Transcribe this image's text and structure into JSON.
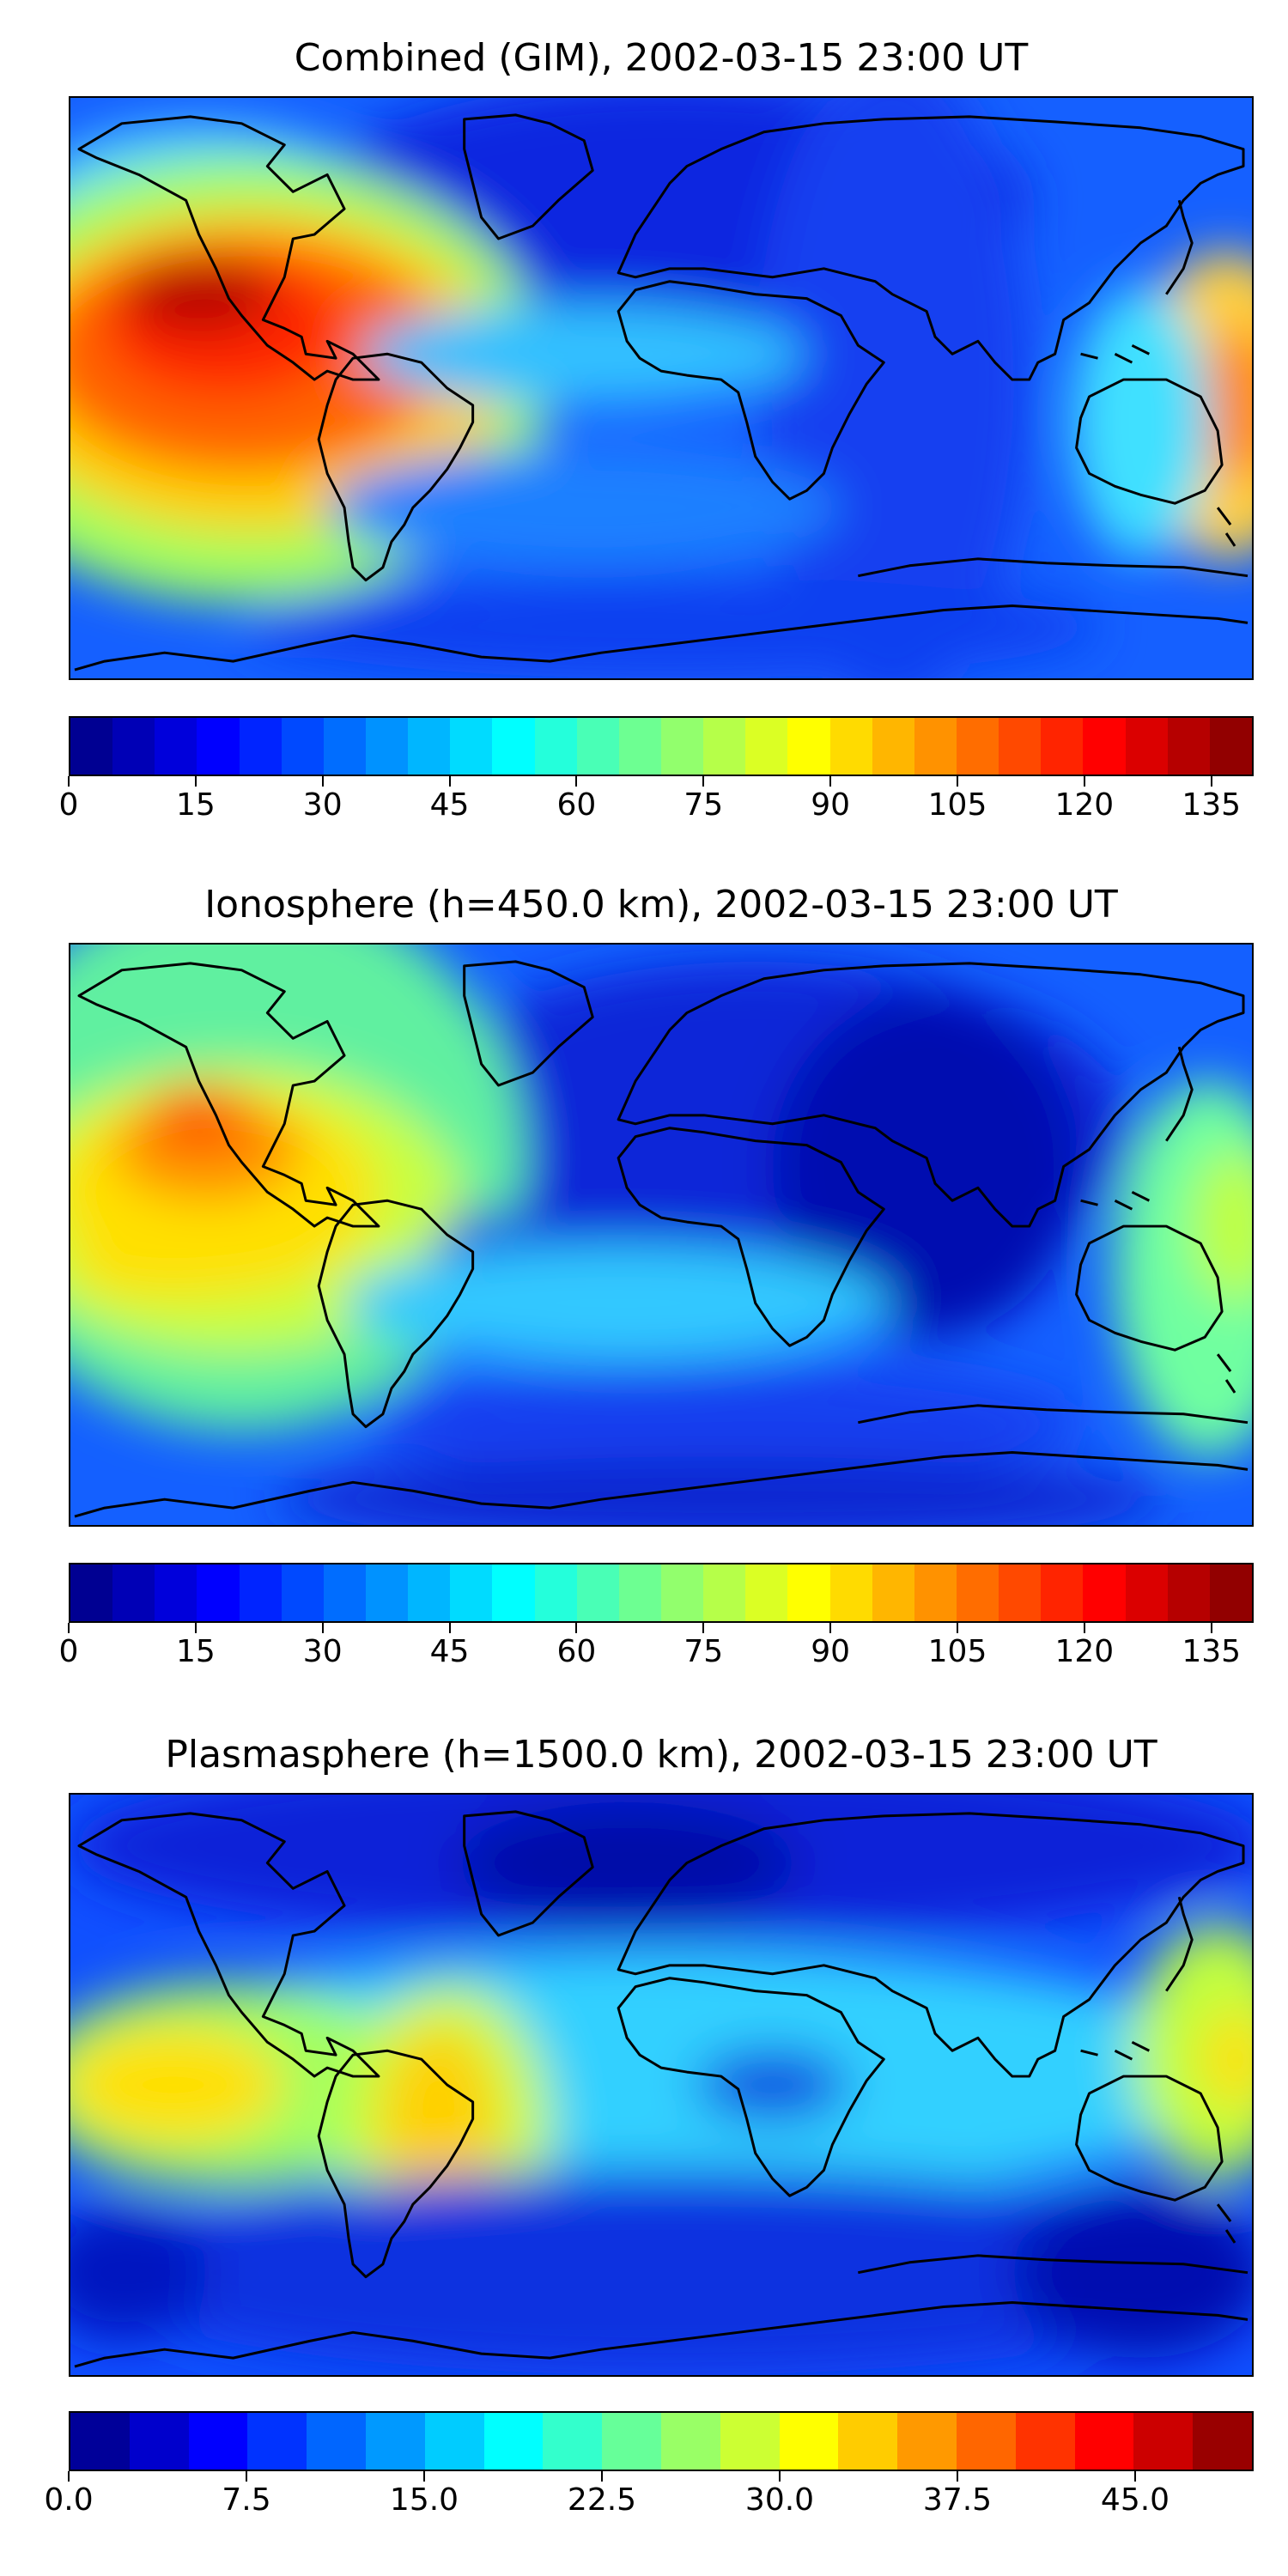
{
  "panels": [
    {
      "title": "Combined (GIM), 2002-03-15 23:00 UT",
      "colorbar": {
        "colormap": "jet",
        "vmin": 0,
        "vmax": 140,
        "levels": 28,
        "ticks": [
          "0",
          "15",
          "30",
          "45",
          "60",
          "75",
          "90",
          "105",
          "120",
          "135"
        ],
        "tick_values": [
          0,
          15,
          30,
          45,
          60,
          75,
          90,
          105,
          120,
          135
        ]
      }
    },
    {
      "title": "Ionosphere  (h=450.0 km), 2002-03-15 23:00 UT",
      "colorbar": {
        "colormap": "jet",
        "vmin": 0,
        "vmax": 140,
        "levels": 28,
        "ticks": [
          "0",
          "15",
          "30",
          "45",
          "60",
          "75",
          "90",
          "105",
          "120",
          "135"
        ],
        "tick_values": [
          0,
          15,
          30,
          45,
          60,
          75,
          90,
          105,
          120,
          135
        ]
      }
    },
    {
      "title": "Plasmasphere (h=1500.0 km), 2002-03-15 23:00 UT",
      "colorbar": {
        "colormap": "jet",
        "vmin": 0,
        "vmax": 50,
        "levels": 20,
        "ticks": [
          "0.0",
          "7.5",
          "15.0",
          "22.5",
          "30.0",
          "37.5",
          "45.0"
        ],
        "tick_values": [
          0,
          7.5,
          15,
          22.5,
          30,
          37.5,
          45
        ]
      }
    }
  ]
}
